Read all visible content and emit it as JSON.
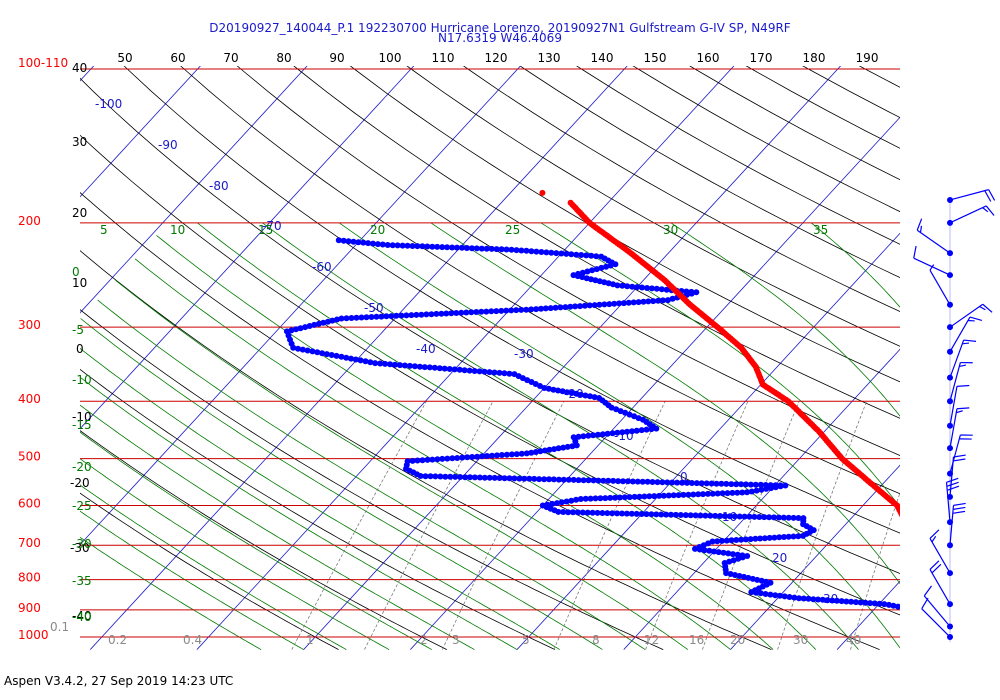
{
  "header": {
    "title_line1": "D20190927_140044_P.1 192230700 Hurricane Lorenzo, 20190927N1 Gulfstream G-IV SP, N49RF",
    "title_line2": "N17.6319 W46.4069"
  },
  "footer": {
    "text": "Aspen V3.4.2, 27 Sep 2019  14:23 UTC"
  },
  "colors": {
    "temperature": "#ff0000",
    "dewpoint": "#0000ff",
    "isobar": "#cc0000",
    "isotherm": "#1a1acc",
    "dry_adiabat": "#000000",
    "moist_adiabat": "#007a00",
    "mixing_ratio": "#7a7a7a",
    "wind": "#0000ff"
  },
  "chart_data": {
    "type": "skew-t",
    "pressure_labels": [
      "100-110",
      "200",
      "300",
      "400",
      "500",
      "600",
      "700",
      "800",
      "900",
      "1000"
    ],
    "top_scale_labels": [
      "50",
      "60",
      "70",
      "80",
      "90",
      "100",
      "110",
      "120",
      "130",
      "140",
      "150",
      "160",
      "170",
      "180",
      "190"
    ],
    "left_black_labels": [
      "40",
      "30",
      "20",
      "10",
      "0",
      "-10",
      "-20",
      "-30",
      "-40"
    ],
    "left_green_labels": [
      "0",
      "-5",
      "-10",
      "-15",
      "-20",
      "-25",
      "-30",
      "-35",
      "-40"
    ],
    "isotherm_labels": [
      "-100",
      "-90",
      "-80",
      "-70",
      "-60",
      "-50",
      "-40",
      "-30",
      "-20",
      "-10",
      "0",
      "10",
      "20",
      "30"
    ],
    "moist_labels_row": [
      "5",
      "10",
      "15",
      "20",
      "25",
      "30",
      "35"
    ],
    "mixing_ratio_labels": [
      "0.1",
      "0.2",
      "0.4",
      "1",
      "2",
      "3",
      "5",
      "8",
      "12",
      "16",
      "20",
      "30",
      "40"
    ],
    "temperature_profile": [
      {
        "p": 1000,
        "t": 26.8
      },
      {
        "p": 990,
        "t": 24.4
      },
      {
        "p": 975,
        "t": 22.6
      },
      {
        "p": 950,
        "t": 22.0
      },
      {
        "p": 925,
        "t": 21.0
      },
      {
        "p": 900,
        "t": 20.0
      },
      {
        "p": 875,
        "t": 18.5
      },
      {
        "p": 850,
        "t": 17.5
      },
      {
        "p": 800,
        "t": 16.0
      },
      {
        "p": 750,
        "t": 11.6
      },
      {
        "p": 700,
        "t": 8.0
      },
      {
        "p": 675,
        "t": 6.8
      },
      {
        "p": 650,
        "t": 6.0
      },
      {
        "p": 600,
        "t": 3.2
      },
      {
        "p": 550,
        "t": -1.2
      },
      {
        "p": 500,
        "t": -6.0
      },
      {
        "p": 450,
        "t": -10.5
      },
      {
        "p": 400,
        "t": -16.0
      },
      {
        "p": 375,
        "t": -19.8
      },
      {
        "p": 350,
        "t": -22.0
      },
      {
        "p": 325,
        "t": -25.0
      },
      {
        "p": 300,
        "t": -29.0
      },
      {
        "p": 275,
        "t": -33.5
      },
      {
        "p": 250,
        "t": -38.0
      },
      {
        "p": 225,
        "t": -43.5
      },
      {
        "p": 200,
        "t": -50.0
      },
      {
        "p": 185,
        "t": -53.5
      }
    ],
    "temperature_outlier": {
      "p": 178,
      "t": -57.0
    },
    "dewpoint_profile": [
      {
        "p": 1000,
        "td": 22.5
      },
      {
        "p": 975,
        "td": 20.8
      },
      {
        "p": 950,
        "td": 20.2
      },
      {
        "p": 930,
        "td": 18.0
      },
      {
        "p": 900,
        "td": 14.0
      },
      {
        "p": 880,
        "td": 10.5
      },
      {
        "p": 860,
        "td": 2.0
      },
      {
        "p": 840,
        "td": -3.0
      },
      {
        "p": 810,
        "td": -2.0
      },
      {
        "p": 780,
        "td": -7.0
      },
      {
        "p": 750,
        "td": -8.0
      },
      {
        "p": 730,
        "td": -6.5
      },
      {
        "p": 710,
        "td": -12.0
      },
      {
        "p": 690,
        "td": -11.0
      },
      {
        "p": 675,
        "td": -3.0
      },
      {
        "p": 660,
        "td": -2.5
      },
      {
        "p": 645,
        "td": -4.0
      },
      {
        "p": 630,
        "td": -4.5
      },
      {
        "p": 615,
        "td": -28.0
      },
      {
        "p": 600,
        "td": -30.0
      },
      {
        "p": 585,
        "td": -27.0
      },
      {
        "p": 570,
        "td": -12.0
      },
      {
        "p": 555,
        "td": -9.0
      },
      {
        "p": 545,
        "td": -26.0
      },
      {
        "p": 535,
        "td": -44.0
      },
      {
        "p": 520,
        "td": -46.0
      },
      {
        "p": 505,
        "td": -46.5
      },
      {
        "p": 490,
        "td": -36.0
      },
      {
        "p": 475,
        "td": -32.0
      },
      {
        "p": 460,
        "td": -33.0
      },
      {
        "p": 445,
        "td": -26.0
      },
      {
        "p": 430,
        "td": -28.0
      },
      {
        "p": 410,
        "td": -32.0
      },
      {
        "p": 395,
        "td": -34.0
      },
      {
        "p": 380,
        "td": -40.0
      },
      {
        "p": 360,
        "td": -44.0
      },
      {
        "p": 345,
        "td": -58.0
      },
      {
        "p": 325,
        "td": -67.0
      },
      {
        "p": 305,
        "td": -69.0
      },
      {
        "p": 290,
        "td": -65.0
      },
      {
        "p": 280,
        "td": -48.0
      },
      {
        "p": 270,
        "td": -36.0
      },
      {
        "p": 262,
        "td": -34.0
      },
      {
        "p": 255,
        "td": -42.0
      },
      {
        "p": 245,
        "td": -47.0
      },
      {
        "p": 235,
        "td": -44.0
      },
      {
        "p": 228,
        "td": -46.0
      },
      {
        "p": 222,
        "td": -55.0
      },
      {
        "p": 218,
        "td": -67.0
      },
      {
        "p": 214,
        "td": -72.0
      }
    ],
    "wind_barbs": [
      {
        "p": 183,
        "dir": 75,
        "spd": 20
      },
      {
        "p": 200,
        "dir": 65,
        "spd": 15
      },
      {
        "p": 225,
        "dir": 305,
        "spd": 15
      },
      {
        "p": 245,
        "dir": 295,
        "spd": 10
      },
      {
        "p": 275,
        "dir": 330,
        "spd": 5
      },
      {
        "p": 300,
        "dir": 55,
        "spd": 15
      },
      {
        "p": 330,
        "dir": 30,
        "spd": 15
      },
      {
        "p": 365,
        "dir": 20,
        "spd": 15
      },
      {
        "p": 400,
        "dir": 15,
        "spd": 15
      },
      {
        "p": 440,
        "dir": 10,
        "spd": 10
      },
      {
        "p": 480,
        "dir": 10,
        "spd": 15
      },
      {
        "p": 530,
        "dir": 15,
        "spd": 20
      },
      {
        "p": 580,
        "dir": 5,
        "spd": 20
      },
      {
        "p": 640,
        "dir": 355,
        "spd": 30
      },
      {
        "p": 700,
        "dir": 5,
        "spd": 30
      },
      {
        "p": 780,
        "dir": 330,
        "spd": 15
      },
      {
        "p": 880,
        "dir": 330,
        "spd": 20
      },
      {
        "p": 960,
        "dir": 320,
        "spd": 10
      },
      {
        "p": 1000,
        "dir": 315,
        "spd": 10
      }
    ]
  }
}
